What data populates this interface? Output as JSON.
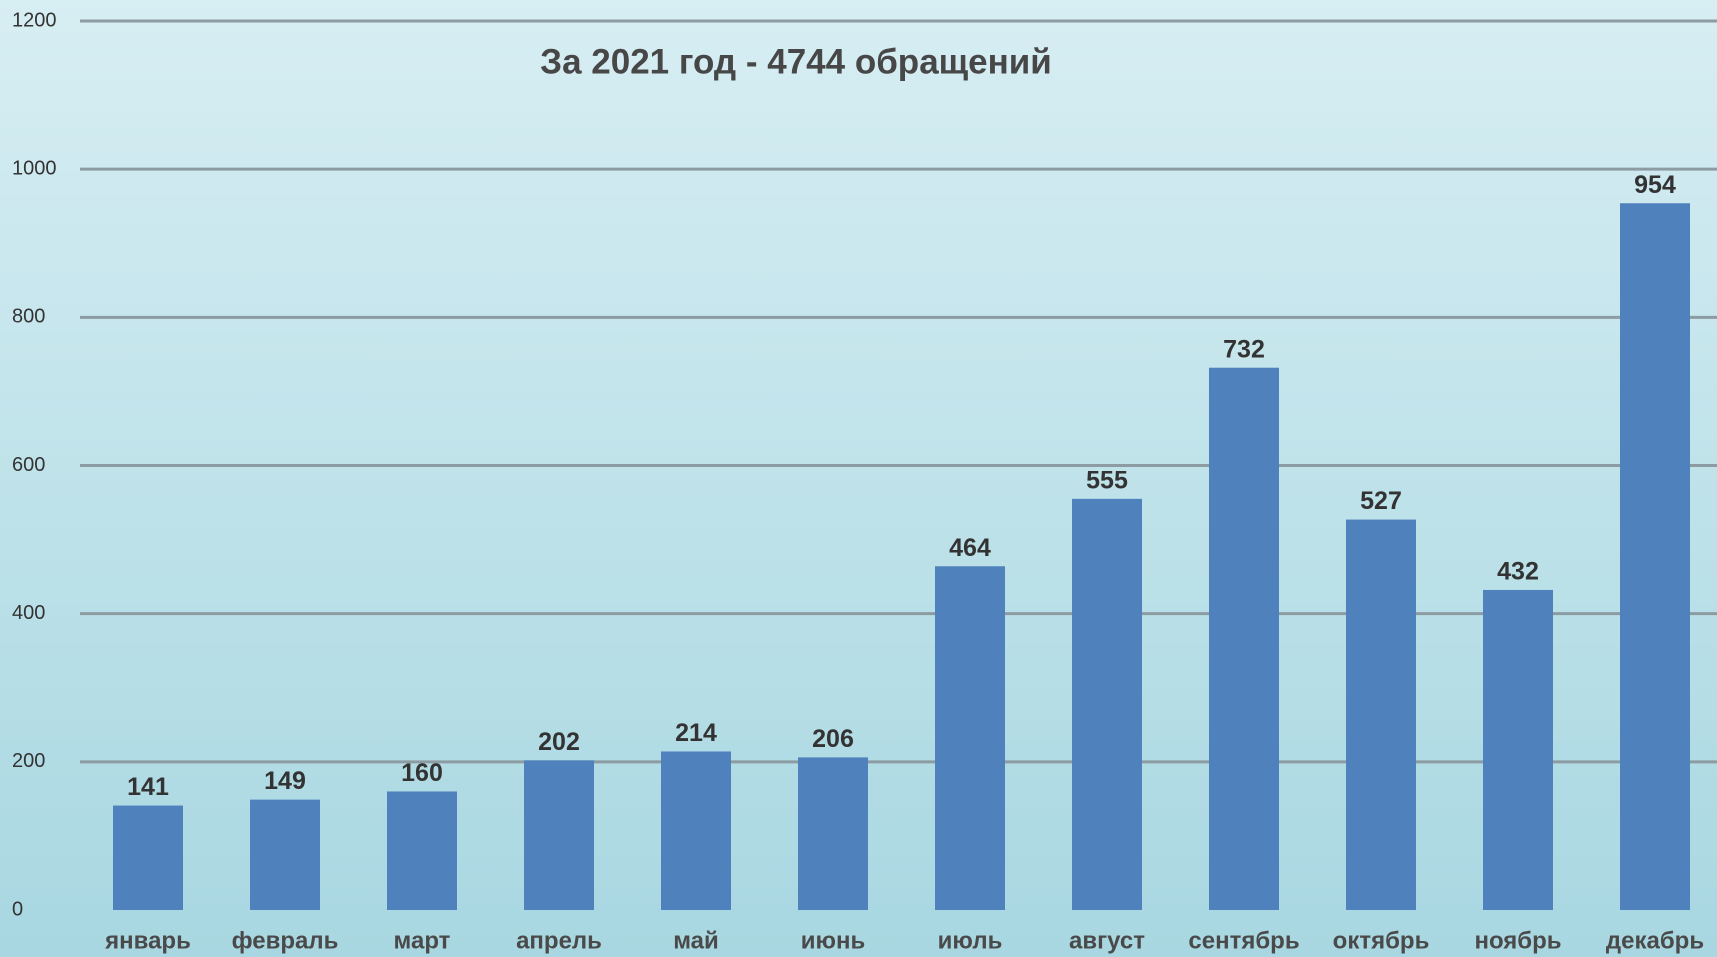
{
  "chart_data": {
    "type": "bar",
    "title": "За 2021 год - 4744 обращений",
    "categories": [
      "январь",
      "февраль",
      "март",
      "апрель",
      "май",
      "июнь",
      "июль",
      "август",
      "сентябрь",
      "октябрь",
      "ноябрь",
      "декабрь"
    ],
    "values": [
      141,
      149,
      160,
      202,
      214,
      206,
      464,
      555,
      732,
      527,
      432,
      954
    ],
    "color": "#4f81bd",
    "ylim": [
      0,
      1200
    ],
    "yticks": [
      0,
      200,
      400,
      600,
      800,
      1000,
      1200
    ],
    "grid": true
  }
}
